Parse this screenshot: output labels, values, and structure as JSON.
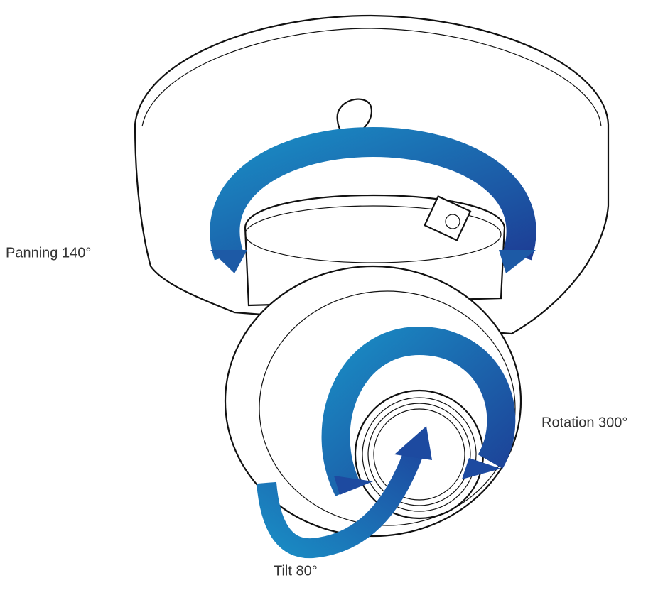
{
  "annotations": [
    "Panning 140°",
    "Rotation 300°",
    "Tilt 80°"
  ]
}
